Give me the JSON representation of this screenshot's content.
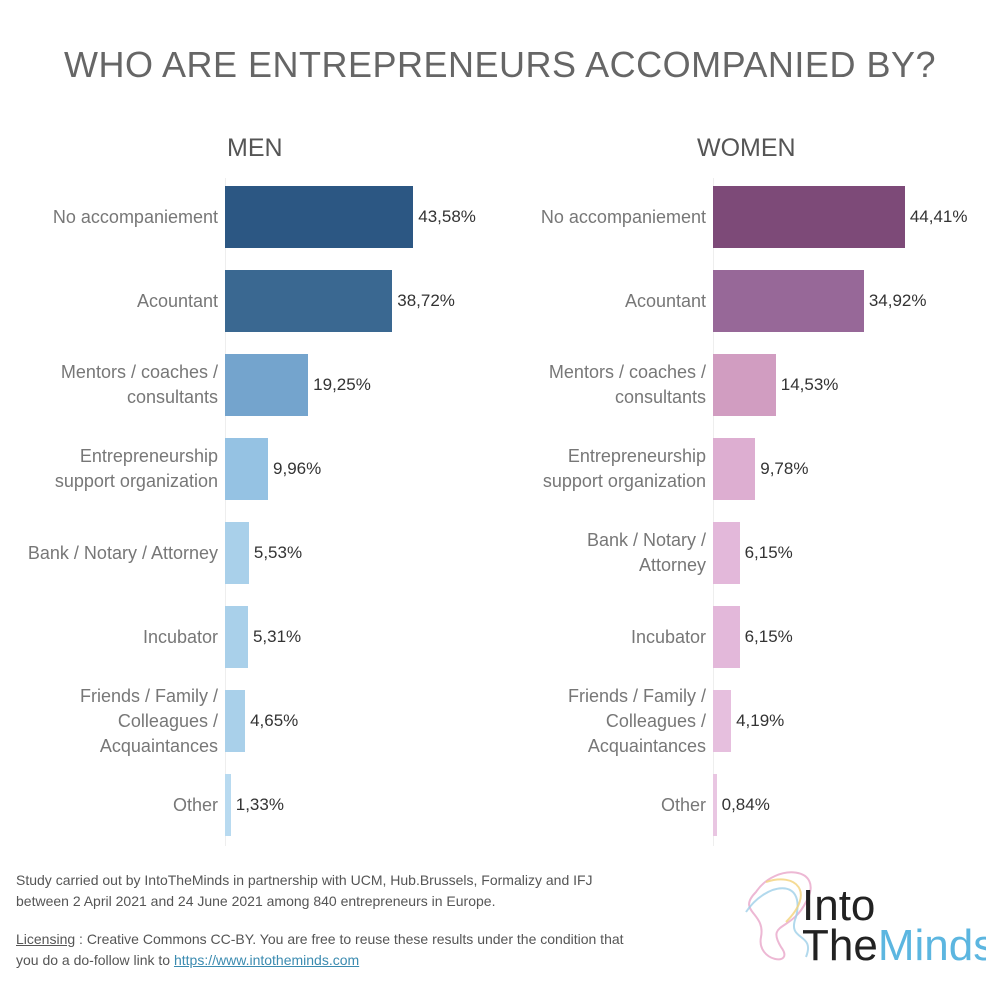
{
  "chart_data": [
    {
      "type": "bar",
      "orientation": "horizontal",
      "title": "MEN",
      "categories": [
        "No accompaniement",
        "Acountant",
        "Mentors / coaches /\nconsultants",
        "Entrepreneurship\nsupport organization",
        "Bank / Notary / Attorney",
        "Incubator",
        "Friends / Family /\nColleagues /\nAcquaintances",
        "Other"
      ],
      "values": [
        43.58,
        38.72,
        19.25,
        9.96,
        5.53,
        5.31,
        4.65,
        1.33
      ],
      "value_labels": [
        "43,58%",
        "38,72%",
        "19,25%",
        "9,96%",
        "5,53%",
        "5,31%",
        "4,65%",
        "1,33%"
      ],
      "colors": [
        "#2c5783",
        "#3a6891",
        "#74a4cd",
        "#95c2e3",
        "#a9d0ea",
        "#a9d0ea",
        "#a9d0ea",
        "#b8daf0"
      ],
      "xlim": [
        0,
        50
      ]
    },
    {
      "type": "bar",
      "orientation": "horizontal",
      "title": "WOMEN",
      "categories": [
        "No accompaniement",
        "Acountant",
        "Mentors / coaches /\nconsultants",
        "Entrepreneurship\nsupport organization",
        "Bank / Notary /\nAttorney",
        "Incubator",
        "Friends / Family /\nColleagues /\nAcquaintances",
        "Other"
      ],
      "values": [
        44.41,
        34.92,
        14.53,
        9.78,
        6.15,
        6.15,
        4.19,
        0.84
      ],
      "value_labels": [
        "44,41%",
        "34,92%",
        "14,53%",
        "9,78%",
        "6,15%",
        "6,15%",
        "4,19%",
        "0,84%"
      ],
      "colors": [
        "#7d4a78",
        "#976898",
        "#d19dc1",
        "#ddaed1",
        "#e3b8da",
        "#e3b8da",
        "#e6bfde",
        "#e9c6e2"
      ],
      "xlim": [
        0,
        50
      ]
    }
  ],
  "title": "WHO ARE ENTREPRENEURS ACCOMPANIED BY?",
  "footer": {
    "study_line1": "Study carried out by IntoTheMinds in partnership with UCM, Hub.Brussels, Formalizy and IFJ",
    "study_line2": "between 2 April 2021 and 24 June 2021 among 840 entrepreneurs in Europe.",
    "licensing_label": "Licensing",
    "licensing_text": " : Creative Commons CC-BY. You are free to reuse these results under the condition that",
    "licensing_text2": "you do a do-follow link to ",
    "link": "https://www.intotheminds.com"
  },
  "logo": {
    "line1": "Into",
    "line2a": "The",
    "line2b": "Minds"
  }
}
